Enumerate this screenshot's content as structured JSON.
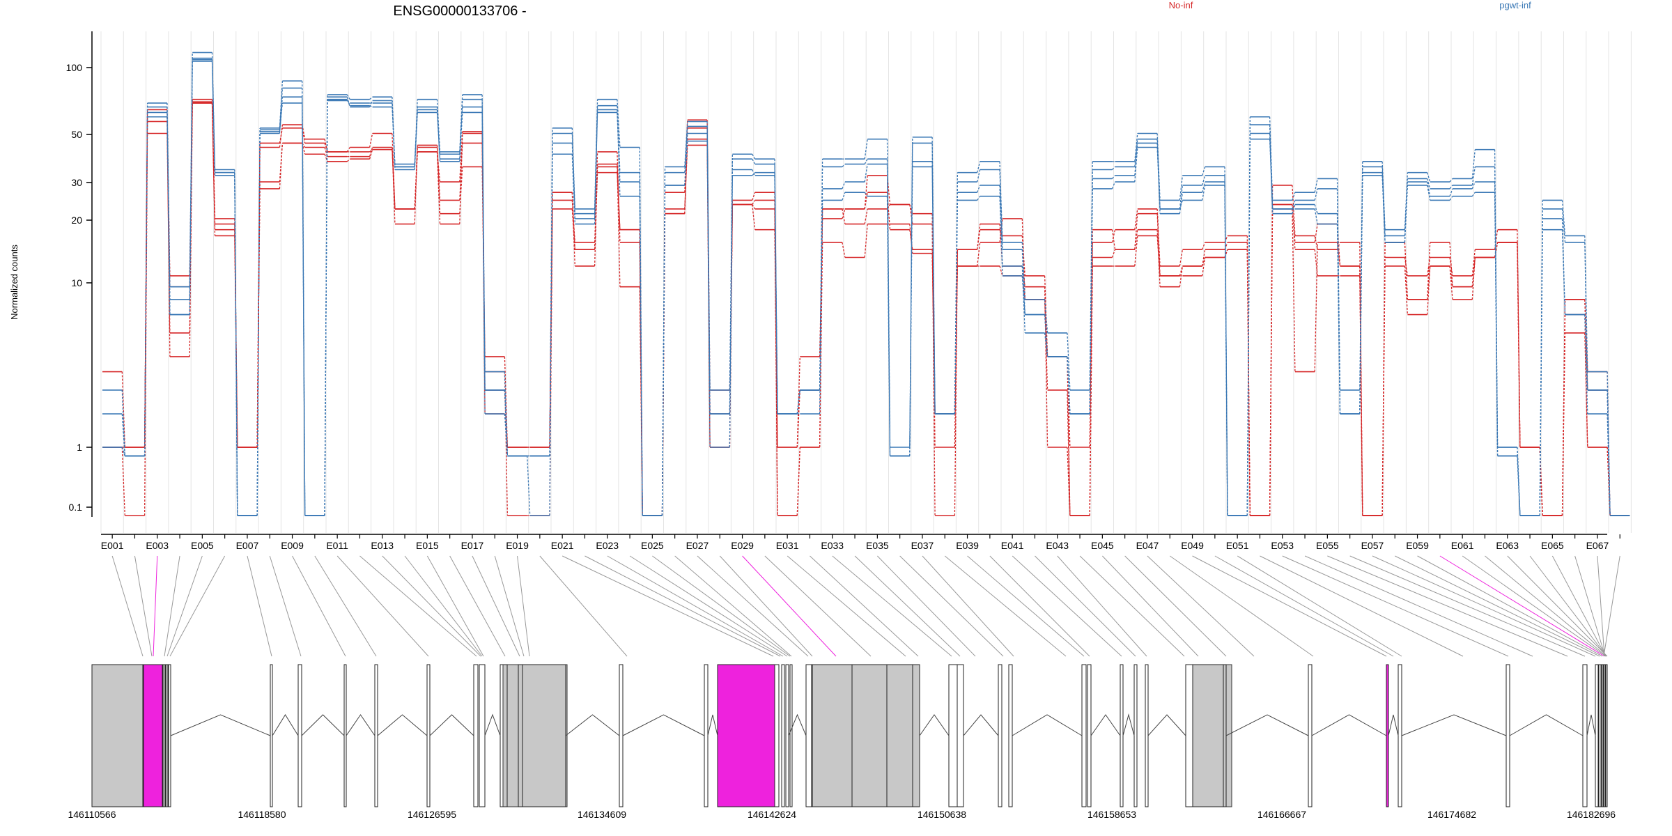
{
  "figure": {
    "title": "ENSG00000133706 -",
    "ylabel": "Normalized counts",
    "legend": [
      {
        "name": "No-inf",
        "color": "#d62728"
      },
      {
        "name": "pgwt-inf",
        "color": "#3a78b5"
      }
    ],
    "yticks": [
      "100",
      "50",
      "30",
      "20",
      "10",
      "1",
      "0.1"
    ],
    "coord_ticks": [
      "146110566",
      "146118580",
      "146126595",
      "146134609",
      "146142624",
      "146150638",
      "146158653",
      "146166667",
      "146174682",
      "146182696"
    ]
  },
  "colors": {
    "no_inf": "#d62728",
    "pgwt_inf": "#3a78b5",
    "exon_gray": "#c8c8c8",
    "exon_hl": "#ee22dd"
  },
  "chart_data": {
    "type": "line",
    "yscale": "log",
    "ylim": [
      0.07,
      130
    ],
    "grid": "vertical",
    "legend_position": "top-right",
    "exons": [
      "E001",
      "E002",
      "E003",
      "E004",
      "E005",
      "E006",
      "E007",
      "E008",
      "E009",
      "E010",
      "E011",
      "E012",
      "E013",
      "E014",
      "E015",
      "E016",
      "E017",
      "E018",
      "E019",
      "E020",
      "E021",
      "E022",
      "E023",
      "E024",
      "E025",
      "E026",
      "E027",
      "E028",
      "E029",
      "E030",
      "E031",
      "E032",
      "E033",
      "E034",
      "E035",
      "E036",
      "E037",
      "E038",
      "E039",
      "E040",
      "E041",
      "E042",
      "E043",
      "E044",
      "E045",
      "E046",
      "E047",
      "E048",
      "E049",
      "E050",
      "E051",
      "E052",
      "E053",
      "E054",
      "E055",
      "E056",
      "E057",
      "E058",
      "E059",
      "E060",
      "E061",
      "E062",
      "E063",
      "E064",
      "E065",
      "E066",
      "E067",
      "E068"
    ],
    "highlighted_exons": [
      "E003",
      "E029",
      "E060"
    ],
    "series": [
      {
        "group": "No-inf",
        "values": [
          2.5,
          1,
          55,
          8,
          68,
          15,
          1,
          25,
          40,
          38,
          34,
          34,
          38,
          15,
          39,
          17,
          30,
          3,
          1,
          1,
          22,
          11,
          31,
          14,
          0.07,
          18,
          39,
          1,
          20,
          22,
          0.07,
          1,
          12,
          10,
          15,
          15,
          10.5,
          1.5,
          9,
          12,
          16,
          6,
          3,
          0.07,
          9,
          9,
          13,
          8,
          8,
          10,
          11,
          0.07,
          19,
          11,
          8,
          8,
          0.07,
          10,
          8,
          10,
          8,
          11,
          14,
          1,
          0.07,
          6,
          2.5,
          0.07
        ]
      },
      {
        "group": "No-inf",
        "values": [
          1,
          1,
          60,
          7,
          65,
          16,
          1,
          40,
          48,
          40,
          36,
          36,
          37,
          18,
          38,
          20,
          40,
          2,
          1,
          1,
          20,
          12,
          28,
          14,
          0.07,
          17,
          42,
          1,
          19,
          18,
          0.07,
          1,
          18,
          15,
          18,
          19,
          17,
          1,
          11,
          14,
          13,
          8,
          3,
          1,
          12,
          14,
          18,
          9,
          11,
          12,
          13,
          0.07,
          24,
          13,
          11,
          12,
          0.07,
          12,
          6,
          12,
          7,
          10,
          12,
          1,
          0.07,
          6,
          2,
          0.07
        ]
      },
      {
        "group": "No-inf",
        "values": [
          1,
          0.07,
          45,
          4,
          65,
          14,
          1,
          38,
          50,
          42,
          36,
          38,
          45,
          18,
          36,
          15,
          45,
          2.5,
          0.07,
          0.07,
          18,
          11,
          36,
          12,
          0.07,
          17,
          48,
          2,
          19,
          20,
          1,
          2,
          18,
          18,
          27,
          19,
          15,
          0.07,
          11,
          15,
          9,
          7,
          1,
          0.07,
          14,
          11,
          17,
          8,
          9,
          11,
          12,
          0.07,
          19,
          12,
          15,
          9,
          0.07,
          12,
          6,
          9,
          7,
          10,
          12,
          1,
          0.07,
          4,
          1,
          0.07
        ]
      },
      {
        "group": "No-inf",
        "values": [
          1,
          1,
          52,
          3,
          66,
          13,
          1,
          23,
          40,
          35,
          32,
          33,
          37,
          18,
          36,
          25,
          46,
          1.5,
          1,
          1,
          22,
          9,
          30,
          7,
          0.07,
          22,
          53,
          1.5,
          19,
          14,
          1,
          3,
          16,
          18,
          22,
          14,
          11,
          1.5,
          9,
          9,
          8,
          6,
          2,
          0.07,
          10,
          11,
          14,
          7,
          9,
          10,
          11,
          0.07,
          18,
          2.5,
          12,
          9,
          0.07,
          9,
          5,
          9,
          6,
          10,
          12,
          1,
          0.07,
          5,
          1,
          0.07
        ]
      },
      {
        "group": "pgwt-inf",
        "values": [
          2,
          0.9,
          65,
          6,
          120,
          29,
          0.07,
          48,
          85,
          0.07,
          72,
          68,
          70,
          30,
          68,
          36,
          72,
          2,
          0.9,
          0.9,
          48,
          18,
          68,
          38,
          0.07,
          30,
          52,
          2,
          35,
          33,
          1.5,
          2,
          33,
          33,
          42,
          1,
          43,
          1.5,
          28,
          32,
          12,
          6,
          4,
          2,
          32,
          32,
          45,
          20,
          27,
          30,
          0.07,
          55,
          20,
          22,
          26,
          2,
          32,
          14,
          28,
          25,
          26,
          37,
          1,
          0.07,
          20,
          13,
          2.5,
          0.07
        ]
      },
      {
        "group": "pgwt-inf",
        "values": [
          1.5,
          0.9,
          62,
          5,
          110,
          28,
          0.07,
          47,
          78,
          0.07,
          70,
          62,
          67,
          30,
          58,
          33,
          68,
          2.5,
          0.9,
          0.9,
          45,
          17,
          63,
          28,
          0.07,
          28,
          49,
          1.5,
          33,
          31,
          1.5,
          2,
          30,
          31,
          33,
          0.9,
          40,
          1.5,
          25,
          29,
          11,
          5,
          3,
          1.5,
          29,
          30,
          42,
          18,
          24,
          27,
          0.07,
          50,
          18,
          20,
          23,
          1.5,
          30,
          13,
          26,
          23,
          24,
          30,
          1,
          0.07,
          18,
          12,
          2,
          0.07
        ]
      },
      {
        "group": "pgwt-inf",
        "values": [
          1,
          0.9,
          58,
          7,
          112,
          27,
          0.07,
          45,
          70,
          0.07,
          67,
          65,
          65,
          29,
          60,
          35,
          62,
          2,
          0.9,
          0.07,
          40,
          16,
          58,
          25,
          0.07,
          24,
          45,
          1.5,
          29,
          27,
          1.5,
          2,
          23,
          25,
          31,
          0.9,
          32,
          1.5,
          22,
          24,
          8,
          5,
          3,
          1.5,
          26,
          27,
          40,
          17,
          22,
          25,
          0.07,
          45,
          17,
          19,
          17,
          1.5,
          28,
          12,
          25,
          21,
          23,
          25,
          0.9,
          0.07,
          16,
          5,
          2,
          0.07
        ]
      },
      {
        "group": "pgwt-inf",
        "values": [
          1,
          0.9,
          55,
          5,
          108,
          28,
          0.07,
          46,
          65,
          0.07,
          68,
          63,
          62,
          31,
          62,
          32,
          58,
          1.5,
          0.9,
          0.9,
          35,
          15,
          60,
          21,
          0.07,
          24,
          41,
          1,
          27,
          28,
          1.5,
          1.5,
          20,
          22,
          21,
          0.9,
          30,
          1.5,
          20,
          21,
          9,
          4,
          3,
          1.5,
          23,
          25,
          38,
          18,
          20,
          24,
          0.07,
          42,
          18,
          18,
          15,
          1.5,
          27,
          12,
          24,
          20,
          21,
          22,
          0.9,
          0.07,
          14,
          5,
          1.5,
          0.07
        ]
      }
    ],
    "gene_coords": {
      "start": 146110566,
      "end": 146182696
    }
  }
}
